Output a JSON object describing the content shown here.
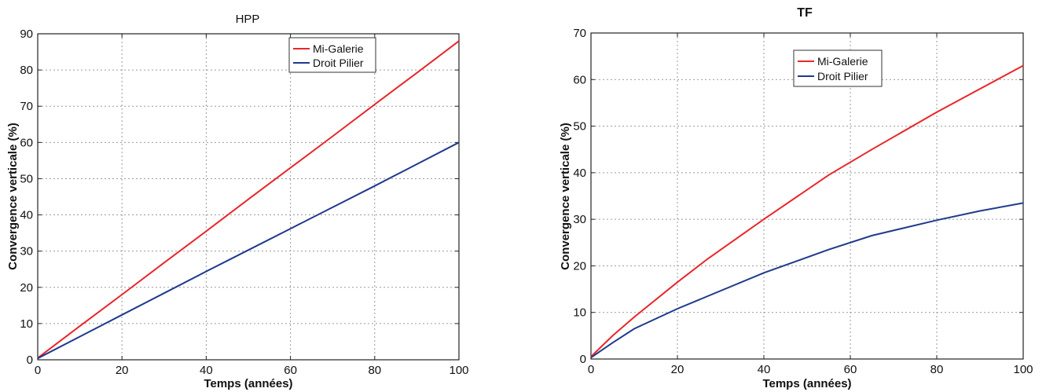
{
  "chart_data": [
    {
      "type": "line",
      "title": "HPP",
      "xlabel": "Temps (années)",
      "ylabel": "Convergence verticale (%)",
      "xlim": [
        0,
        100
      ],
      "ylim": [
        0,
        90
      ],
      "xticks": [
        0,
        20,
        40,
        60,
        80,
        100
      ],
      "yticks": [
        0,
        10,
        20,
        30,
        40,
        50,
        60,
        70,
        80,
        90
      ],
      "grid": true,
      "legend_position": "top-right",
      "series": [
        {
          "name": "Mi-Galerie",
          "color": "#e8262a",
          "x": [
            0,
            10,
            20,
            30,
            40,
            50,
            60,
            70,
            80,
            90,
            100
          ],
          "y": [
            0.5,
            9.3,
            18.0,
            26.8,
            35.5,
            44.3,
            53.0,
            61.7,
            70.5,
            79.2,
            88.0
          ]
        },
        {
          "name": "Droit Pilier",
          "color": "#1f3a8c",
          "x": [
            0,
            10,
            20,
            30,
            40,
            50,
            60,
            70,
            80,
            90,
            100
          ],
          "y": [
            0.4,
            6.4,
            12.4,
            18.4,
            24.4,
            30.3,
            36.2,
            42.1,
            48.0,
            54.0,
            60.0
          ]
        }
      ]
    },
    {
      "type": "line",
      "title": "TF",
      "xlabel": "Temps (années)",
      "ylabel": "Convergence verticale (%)",
      "xlim": [
        0,
        100
      ],
      "ylim": [
        0,
        70
      ],
      "xticks": [
        0,
        20,
        40,
        60,
        80,
        100
      ],
      "yticks": [
        0,
        10,
        20,
        30,
        40,
        50,
        60,
        70
      ],
      "grid": true,
      "legend_position": "top-right",
      "series": [
        {
          "name": "Mi-Galerie",
          "color": "#e8262a",
          "x": [
            0,
            5,
            10,
            20,
            27,
            40,
            55,
            65,
            80,
            90,
            100
          ],
          "y": [
            0.5,
            5.0,
            9.0,
            16.5,
            21.5,
            30.0,
            39.5,
            45.0,
            53.0,
            58.0,
            63.0
          ]
        },
        {
          "name": "Droit Pilier",
          "color": "#1f3a8c",
          "x": [
            0,
            5,
            10,
            20,
            27,
            40,
            55,
            65,
            80,
            90,
            100
          ],
          "y": [
            0.3,
            3.5,
            6.5,
            10.8,
            13.5,
            18.5,
            23.5,
            26.5,
            29.8,
            31.8,
            33.5
          ]
        }
      ]
    }
  ]
}
